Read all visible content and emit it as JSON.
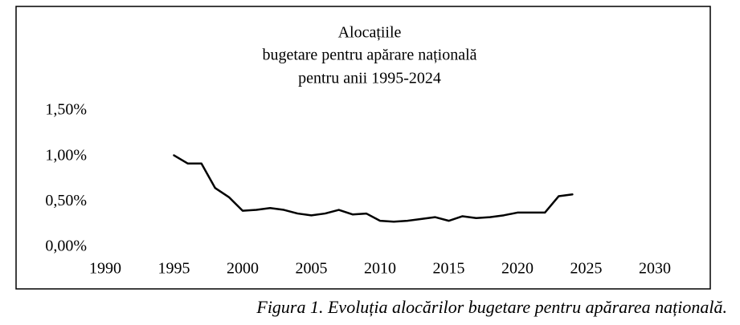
{
  "chart_data": {
    "type": "line",
    "title": [
      "Alocațiile",
      "bugetare pentru apărare națională",
      "pentru anii 1995-2024"
    ],
    "x": [
      1995,
      1996,
      1997,
      1998,
      1999,
      2000,
      2001,
      2002,
      2003,
      2004,
      2005,
      2006,
      2007,
      2008,
      2009,
      2010,
      2011,
      2012,
      2013,
      2014,
      2015,
      2016,
      2017,
      2018,
      2019,
      2020,
      2021,
      2022,
      2023,
      2024
    ],
    "series": [
      {
        "color": "#000000",
        "values": [
          1.01,
          0.92,
          0.92,
          0.65,
          0.55,
          0.4,
          0.41,
          0.43,
          0.41,
          0.37,
          0.35,
          0.37,
          0.41,
          0.36,
          0.37,
          0.29,
          0.28,
          0.29,
          0.31,
          0.33,
          0.29,
          0.34,
          0.32,
          0.33,
          0.35,
          0.38,
          0.38,
          0.38,
          0.56,
          0.58
        ]
      }
    ],
    "xlim": [
      1990,
      2030
    ],
    "xticks": [
      1990,
      1995,
      2000,
      2005,
      2010,
      2015,
      2020,
      2025,
      2030
    ],
    "ylim": [
      0,
      1.5
    ],
    "yticks": [
      {
        "value": 0,
        "label": "0,00%"
      },
      {
        "value": 0.5,
        "label": "0,50%"
      },
      {
        "value": 1.0,
        "label": "1,00%"
      },
      {
        "value": 1.5,
        "label": "1,50%"
      }
    ],
    "grid": false,
    "caption": "Figura 1. Evoluția alocărilor bugetare pentru apărarea națională."
  }
}
